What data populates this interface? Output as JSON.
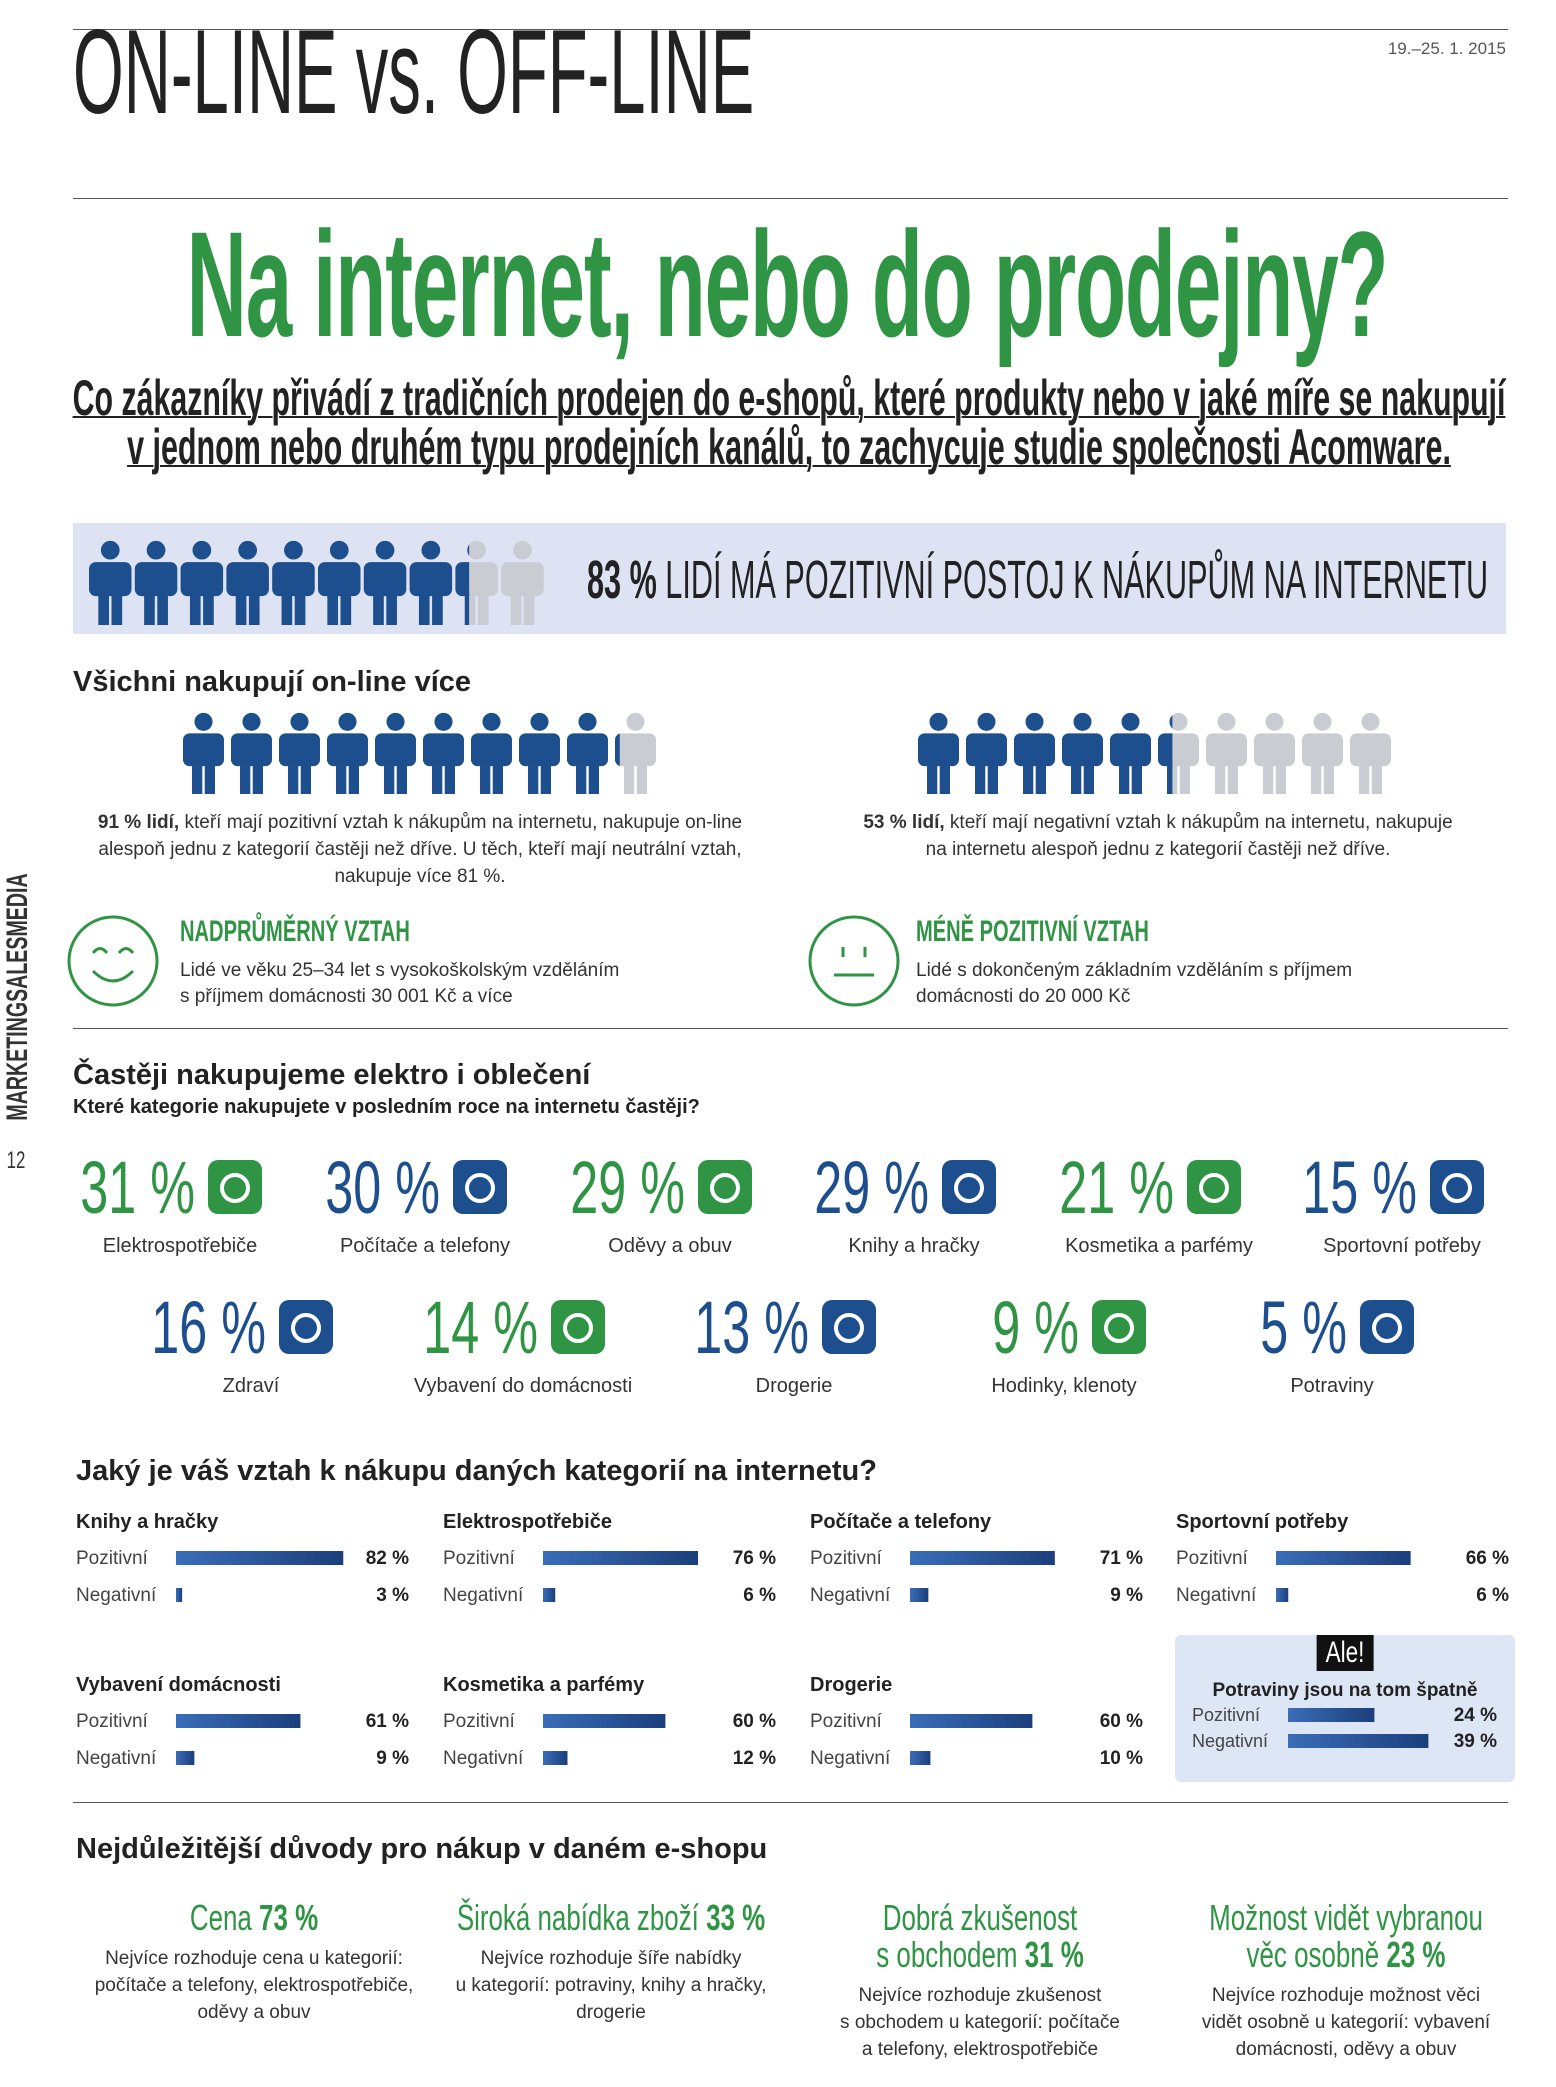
{
  "header": {
    "section": "ON-LINE vs. OFF-LINE",
    "date": "19.–25. 1. 2015",
    "title": "Na internet, nebo do prodejny?",
    "subtitle_lines": [
      "Co zákazníky přivádí z tradičních prodejen do e-shopů, které produkty nebo v jaké míře se nakupují",
      "v jednom nebo druhém typu prodejních kanálů, to zachycuje studie společnosti Acomware."
    ]
  },
  "sidebar": {
    "brand": "MARKETINGSALESMEDIA",
    "page": "12"
  },
  "banner": {
    "share": {
      "value": 83,
      "label": "83 %"
    },
    "text": "LIDÍ MÁ POZITIVNÍ POSTOJ K NÁKUPŮM NA INTERNETU"
  },
  "online": {
    "heading": "Všichni nakupují on-line více",
    "groups": [
      {
        "share": {
          "value": 91,
          "label": "91 % lidí,"
        },
        "lines": [
          "kteří mají pozitivní vztah k nákupům na internetu, nakupuje on-line",
          "alespoň jednu z kategorií častěji než dříve. U těch, kteří mají neutrální vztah,",
          "nakupuje více 81 %."
        ]
      },
      {
        "share": {
          "value": 53,
          "label": "53 % lidí,"
        },
        "lines": [
          "kteří mají negativní vztah k nákupům na internetu, nakupuje",
          "na internetu alespoň jednu z kategorií častěji než dříve."
        ]
      }
    ],
    "attitudes": [
      {
        "title": "NADPRŮMĚRNÝ VZTAH",
        "lines": [
          "Lidé ve věku 25–34 let s vysokoškolským vzděláním",
          "s příjmem domácnosti 30 001 Kč a více"
        ]
      },
      {
        "title": "MÉNĚ POZITIVNÍ VZTAH",
        "lines": [
          "Lidé s dokončeným základním vzděláním s příjmem",
          "domácnosti do 20 000 Kč"
        ]
      }
    ]
  },
  "categories": {
    "heading": "Častěji nakupujeme elektro i oblečení",
    "question": "Které kategorie nakupujete v posledním roce na internetu častěji?",
    "items": [
      {
        "pct": "31 %",
        "label": "Elektrospotřebiče",
        "color": "#2f9444"
      },
      {
        "pct": "30 %",
        "label": "Počítače a telefony",
        "color": "#1d4f8f"
      },
      {
        "pct": "29 %",
        "label": "Oděvy a obuv",
        "color": "#2f9444"
      },
      {
        "pct": "29 %",
        "label": "Knihy a hračky",
        "color": "#1d4f8f"
      },
      {
        "pct": "21 %",
        "label": "Kosmetika a parfémy",
        "color": "#2f9444"
      },
      {
        "pct": "15 %",
        "label": "Sportovní potřeby",
        "color": "#1d4f8f"
      },
      {
        "pct": "16 %",
        "label": "Zdraví",
        "color": "#1d4f8f"
      },
      {
        "pct": "14 %",
        "label": "Vybavení do domácnosti",
        "color": "#2f9444"
      },
      {
        "pct": "13 %",
        "label": "Drogerie",
        "color": "#1d4f8f"
      },
      {
        "pct": "9 %",
        "label": "Hodinky, klenoty",
        "color": "#2f9444"
      },
      {
        "pct": "5 %",
        "label": "Potraviny",
        "color": "#1d4f8f"
      }
    ]
  },
  "relation": {
    "heading": "Jaký je váš vztah k nákupu daných kategorií na internetu?",
    "blocks": [
      {
        "title": "Knihy a hračky",
        "rows": [
          {
            "name": "Pozitivní",
            "value": 82,
            "label": "82 %"
          },
          {
            "name": "Negativní",
            "value": 3,
            "label": "3 %"
          }
        ]
      },
      {
        "title": "Elektrospotřebiče",
        "rows": [
          {
            "name": "Pozitivní",
            "value": 76,
            "label": "76 %"
          },
          {
            "name": "Negativní",
            "value": 6,
            "label": "6 %"
          }
        ]
      },
      {
        "title": "Počítače a telefony",
        "rows": [
          {
            "name": "Pozitivní",
            "value": 71,
            "label": "71 %"
          },
          {
            "name": "Negativní",
            "value": 9,
            "label": "9 %"
          }
        ]
      },
      {
        "title": "Sportovní potřeby",
        "rows": [
          {
            "name": "Pozitivní",
            "value": 66,
            "label": "66 %"
          },
          {
            "name": "Negativní",
            "value": 6,
            "label": "6 %"
          }
        ]
      },
      {
        "title": "Vybavení domácnosti",
        "rows": [
          {
            "name": "Pozitivní",
            "value": 61,
            "label": "61 %"
          },
          {
            "name": "Negativní",
            "value": 9,
            "label": "9 %"
          }
        ]
      },
      {
        "title": "Kosmetika a parfémy",
        "rows": [
          {
            "name": "Pozitivní",
            "value": 60,
            "label": "60 %"
          },
          {
            "name": "Negativní",
            "value": 12,
            "label": "12 %"
          }
        ]
      },
      {
        "title": "Drogerie",
        "rows": [
          {
            "name": "Pozitivní",
            "value": 60,
            "label": "60 %"
          },
          {
            "name": "Negativní",
            "value": 10,
            "label": "10 %"
          }
        ]
      }
    ],
    "note": {
      "tag": "Ale!",
      "title": "Potraviny jsou na tom špatně",
      "rows": [
        {
          "name": "Pozitivní",
          "value": 24,
          "label": "24 %"
        },
        {
          "name": "Negativní",
          "value": 39,
          "label": "39 %"
        }
      ]
    }
  },
  "reasons": {
    "heading": "Nejdůležitější důvody pro nákup v daném e-shopu",
    "items": [
      {
        "title_lines": [
          "Cena"
        ],
        "pct": "73 %",
        "lines": [
          "Nejvíce rozhoduje cena u kategorií:",
          "počítače a telefony, elektrospotřebiče,",
          "oděvy a obuv"
        ]
      },
      {
        "title_lines": [
          "Široká nabídka zboží"
        ],
        "pct": "33 %",
        "lines": [
          "Nejvíce rozhoduje šíře nabídky",
          "u kategorií: potraviny, knihy a hračky,",
          "drogerie"
        ]
      },
      {
        "title_lines": [
          "Dobrá zkušenost",
          "s obchodem"
        ],
        "pct": "31 %",
        "lines": [
          "Nejvíce rozhoduje zkušenost",
          "s obchodem u kategorií: počítače",
          "a telefony, elektrospotřebiče"
        ]
      },
      {
        "title_lines": [
          "Možnost vidět vybranou",
          "věc osobně"
        ],
        "pct": "23 %",
        "lines": [
          "Nejvíce rozhoduje možnost věci",
          "vidět osobně u kategorií: vybavení",
          "domácnosti, oděvy a obuv"
        ]
      }
    ]
  }
}
